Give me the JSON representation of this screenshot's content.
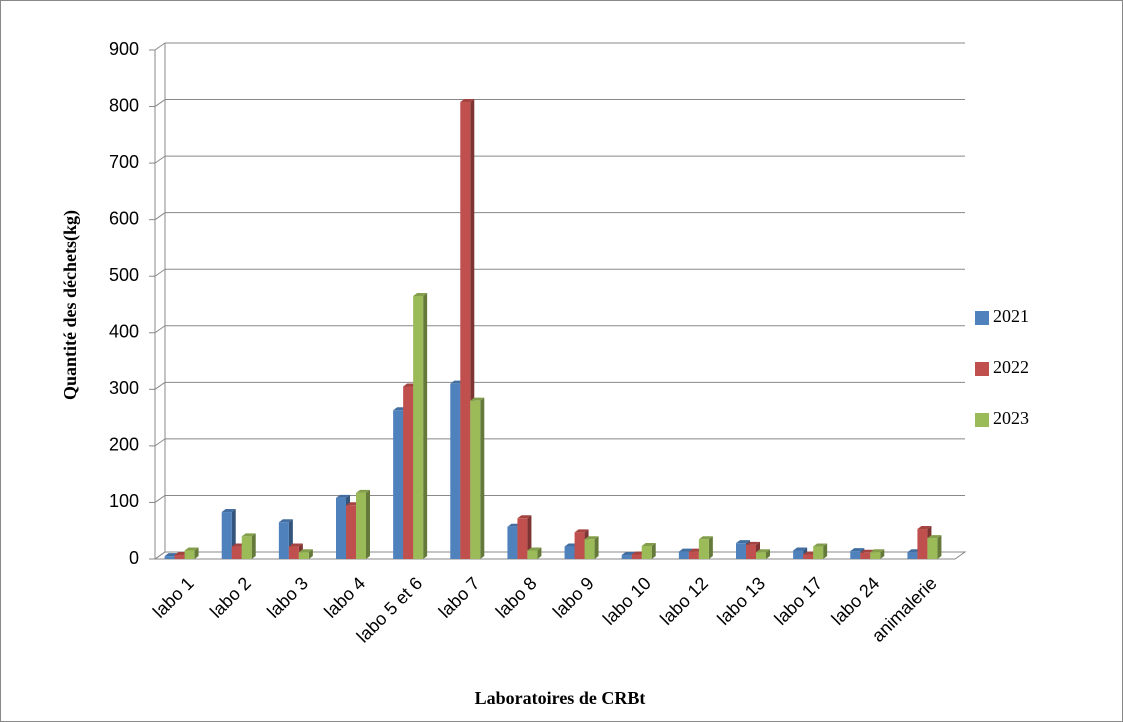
{
  "chart_data": {
    "type": "bar",
    "xlabel": "Laboratoires de CRBt",
    "ylabel": "Quantité des déchets(kg)",
    "categories": [
      "labo 1",
      "labo 2",
      "labo 3",
      "labo 4",
      "labo 5 et 6",
      "labo 7",
      "labo 8",
      "labo 9",
      "labo 10",
      "labo 12",
      "labo 13",
      "labo 17",
      "labo 24",
      "animalerie"
    ],
    "series": [
      {
        "name": "2021",
        "color": "#4f81bd",
        "values": [
          5,
          83,
          65,
          108,
          263,
          310,
          57,
          22,
          7,
          13,
          28,
          15,
          14,
          12
        ]
      },
      {
        "name": "2022",
        "color": "#c0504d",
        "values": [
          7,
          22,
          22,
          95,
          305,
          808,
          72,
          47,
          8,
          13,
          25,
          8,
          11,
          53
        ]
      },
      {
        "name": "2023",
        "color": "#9bbb59",
        "values": [
          15,
          40,
          12,
          117,
          465,
          280,
          15,
          35,
          23,
          35,
          12,
          22,
          12,
          37
        ]
      }
    ],
    "ylim": [
      0,
      900
    ],
    "yticks": [
      0,
      100,
      200,
      300,
      400,
      500,
      600,
      700,
      800,
      900
    ],
    "grid": true,
    "legend": "right"
  }
}
